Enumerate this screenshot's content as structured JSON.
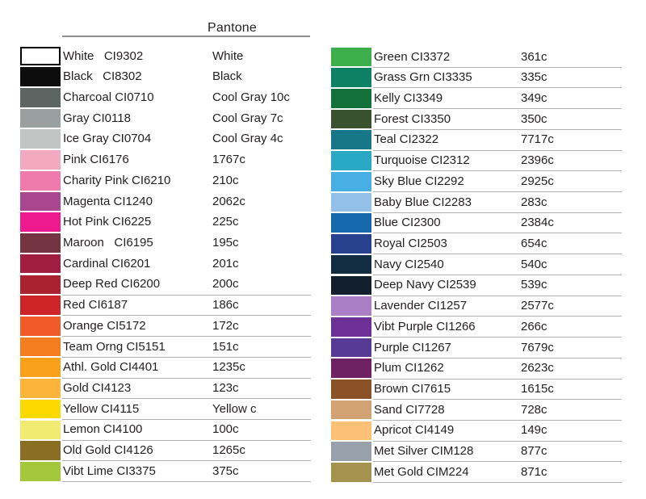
{
  "header": {
    "pantone_label": "Pantone"
  },
  "columns": [
    {
      "rows": [
        {
          "name": "White   CI9302",
          "pantone": "White",
          "color": "#ffffff",
          "line": false
        },
        {
          "name": "Black   CI8302",
          "pantone": "Black",
          "color": "#0d0d0d",
          "line": false
        },
        {
          "name": "Charcoal CI0710",
          "pantone": "Cool Gray 10c",
          "color": "#5d6562",
          "line": false
        },
        {
          "name": "Gray CI0118",
          "pantone": "Cool Gray 7c",
          "color": "#9aa0a0",
          "line": false
        },
        {
          "name": "Ice Gray CI0704",
          "pantone": "Cool Gray 4c",
          "color": "#c3c5c4",
          "line": false
        },
        {
          "name": "Pink CI6176",
          "pantone": "1767c",
          "color": "#f3a9bf",
          "line": false
        },
        {
          "name": "Charity Pink CI6210",
          "pantone": "210c",
          "color": "#ee7bab",
          "line": false
        },
        {
          "name": "Magenta CI1240",
          "pantone": "2062c",
          "color": "#aa4590",
          "line": false
        },
        {
          "name": "Hot Pink CI6225",
          "pantone": "225c",
          "color": "#ec1a8e",
          "line": false
        },
        {
          "name": "Maroon   CI6195",
          "pantone": "195c",
          "color": "#743441",
          "line": false
        },
        {
          "name": "Cardinal CI6201",
          "pantone": "201c",
          "color": "#a11e41",
          "line": false
        },
        {
          "name": "Deep Red CI6200",
          "pantone": "200c",
          "color": "#aa2130",
          "line": true
        },
        {
          "name": "Red CI6187",
          "pantone": "186c",
          "color": "#cd2428",
          "line": true
        },
        {
          "name": "Orange CI5172",
          "pantone": "172c",
          "color": "#f15b2a",
          "line": true
        },
        {
          "name": "Team Orng CI5151",
          "pantone": "151c",
          "color": "#f47d20",
          "line": true
        },
        {
          "name": "Athl. Gold CI4401",
          "pantone": "1235c",
          "color": "#f9a11b",
          "line": true
        },
        {
          "name": "Gold CI4123",
          "pantone": "123c",
          "color": "#fcb53a",
          "line": true
        },
        {
          "name": "Yellow CI4115",
          "pantone": "Yellow c",
          "color": "#fcda00",
          "line": true
        },
        {
          "name": "Lemon CI4100",
          "pantone": "100c",
          "color": "#f2eb72",
          "line": true
        },
        {
          "name": "Old Gold CI4126",
          "pantone": "1265c",
          "color": "#8a6e24",
          "line": true
        },
        {
          "name": "Vibt Lime CI3375",
          "pantone": "375c",
          "color": "#a3c83c",
          "line": true
        }
      ]
    },
    {
      "rows": [
        {
          "name": "Green CI3372",
          "pantone": "361c",
          "color": "#3dae49",
          "line": true
        },
        {
          "name": "Grass Grn CI3335",
          "pantone": "335c",
          "color": "#0e8063",
          "line": true
        },
        {
          "name": "Kelly CI3349",
          "pantone": "349c",
          "color": "#147039",
          "line": true
        },
        {
          "name": "Forest CI3350",
          "pantone": "350c",
          "color": "#3a512f",
          "line": true
        },
        {
          "name": "Teal CI2322",
          "pantone": "7717c",
          "color": "#177789",
          "line": true
        },
        {
          "name": "Turquoise CI2312",
          "pantone": "2396c",
          "color": "#2aa9c5",
          "line": true
        },
        {
          "name": "Sky Blue CI2292",
          "pantone": "2925c",
          "color": "#47afe3",
          "line": true
        },
        {
          "name": "Baby Blue CI2283",
          "pantone": "283c",
          "color": "#93c0e9",
          "line": true
        },
        {
          "name": "Blue CI2300",
          "pantone": "2384c",
          "color": "#1568ab",
          "line": true
        },
        {
          "name": "Royal CI2503",
          "pantone": "654c",
          "color": "#27418f",
          "line": true
        },
        {
          "name": "Navy CI2540",
          "pantone": "540c",
          "color": "#122c41",
          "line": true
        },
        {
          "name": "Deep Navy CI2539",
          "pantone": "539c",
          "color": "#121f2c",
          "line": true
        },
        {
          "name": "Lavender CI1257",
          "pantone": "2577c",
          "color": "#aa7fc5",
          "line": true
        },
        {
          "name": "Vibt Purple CI1266",
          "pantone": "266c",
          "color": "#6d3097",
          "line": true
        },
        {
          "name": "Purple CI1267",
          "pantone": "7679c",
          "color": "#573a94",
          "line": true
        },
        {
          "name": "Plum CI1262",
          "pantone": "2623c",
          "color": "#6e2263",
          "line": true
        },
        {
          "name": "Brown CI7615",
          "pantone": "1615c",
          "color": "#8b5127",
          "line": true
        },
        {
          "name": "Sand CI7728",
          "pantone": "728c",
          "color": "#d3a273",
          "line": true
        },
        {
          "name": "Apricot CI4149",
          "pantone": "149c",
          "color": "#fcc077",
          "line": true
        },
        {
          "name": "Met Silver CIM128",
          "pantone": "877c",
          "color": "#98a1a9",
          "line": true
        },
        {
          "name": "Met Gold CIM224",
          "pantone": "871c",
          "color": "#a3934f",
          "line": true
        }
      ]
    }
  ]
}
